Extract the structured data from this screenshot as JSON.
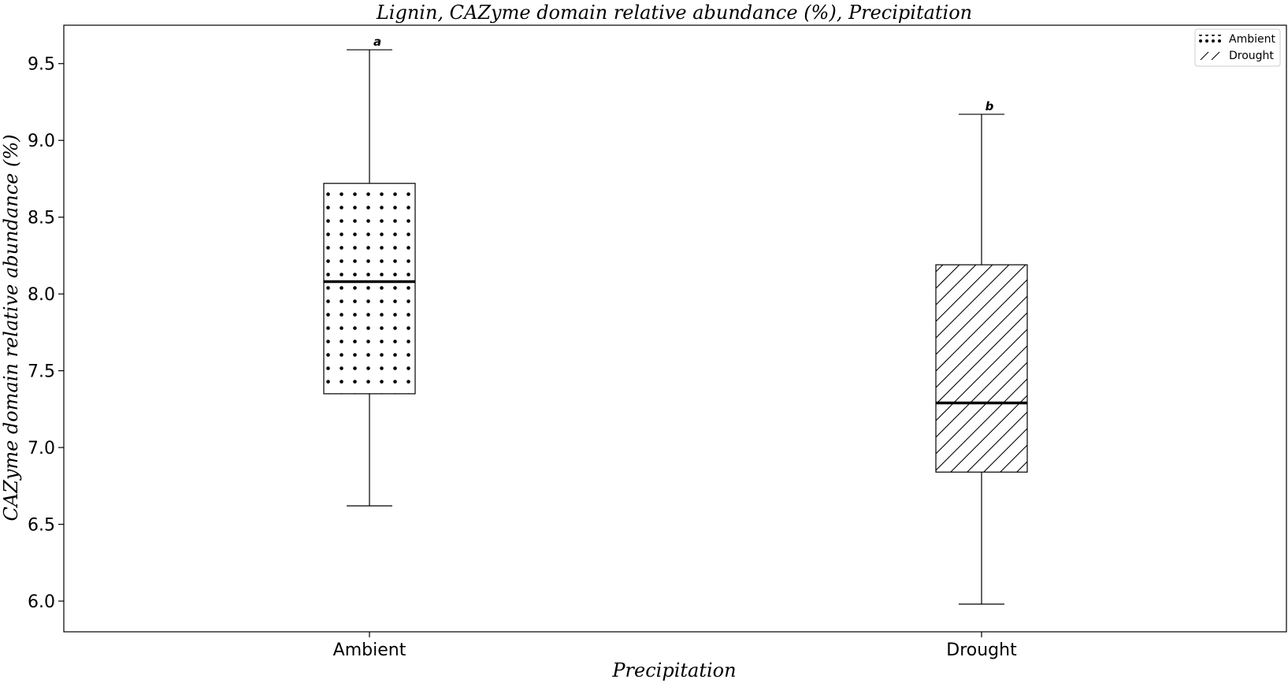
{
  "chart_data": {
    "type": "box",
    "title": "Lignin, CAZyme domain relative abundance (%), Precipitation",
    "xlabel": "Precipitation",
    "ylabel": "CAZyme domain relative abundance (%)",
    "categories": [
      "Ambient",
      "Drought"
    ],
    "ylim": [
      5.8,
      9.75
    ],
    "yticks": [
      "6.0",
      "6.5",
      "7.0",
      "7.5",
      "8.0",
      "8.5",
      "9.0",
      "9.5"
    ],
    "grid": false,
    "legend_position": "top-right",
    "series": [
      {
        "name": "Ambient",
        "pattern": "dots",
        "whisker_low": 6.62,
        "q1": 7.35,
        "median": 8.08,
        "q3": 8.72,
        "whisker_high": 9.59,
        "significance": "a"
      },
      {
        "name": "Drought",
        "pattern": "diagonal-hatch",
        "whisker_low": 5.98,
        "q1": 6.84,
        "median": 7.29,
        "q3": 8.19,
        "whisker_high": 9.17,
        "significance": "b"
      }
    ],
    "legend": [
      {
        "label": "Ambient",
        "pattern": "dots"
      },
      {
        "label": "Drought",
        "pattern": "diagonal-hatch"
      }
    ]
  }
}
